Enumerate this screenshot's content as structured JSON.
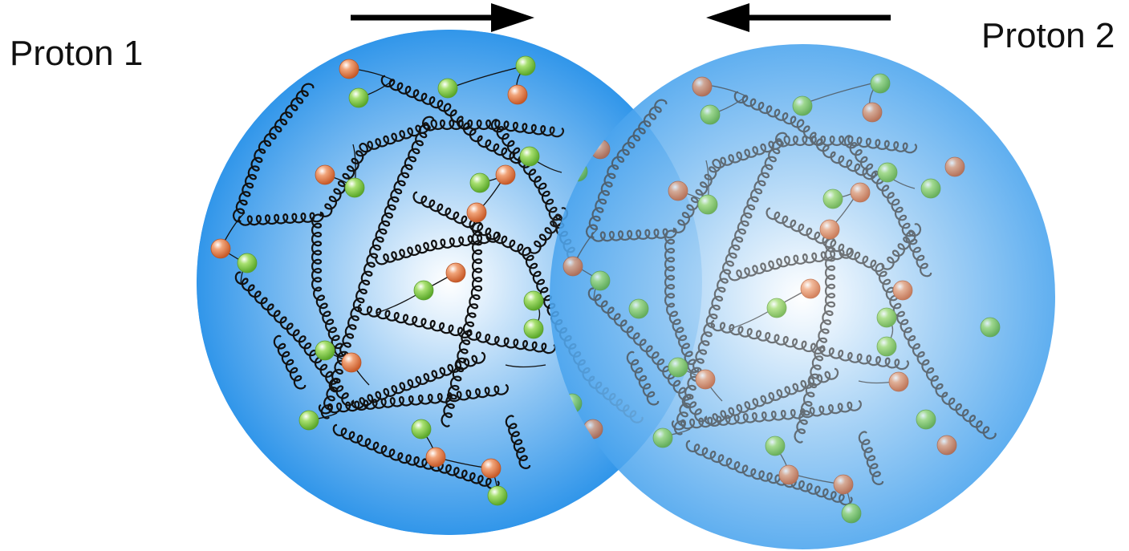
{
  "labels": {
    "proton1": "Proton 1",
    "proton2": "Proton 2"
  },
  "colors": {
    "sphere_edge": "#3a9ae8",
    "sphere_center": "#ffffff",
    "quark_orange": "#e8804a",
    "quark_green": "#8ed24a",
    "gluon_front": "#111111",
    "gluon_back": "#555555",
    "arrow": "#000000"
  },
  "icons": {
    "arrow_left_proton": "arrow-right-icon",
    "arrow_right_proton": "arrow-left-icon"
  }
}
